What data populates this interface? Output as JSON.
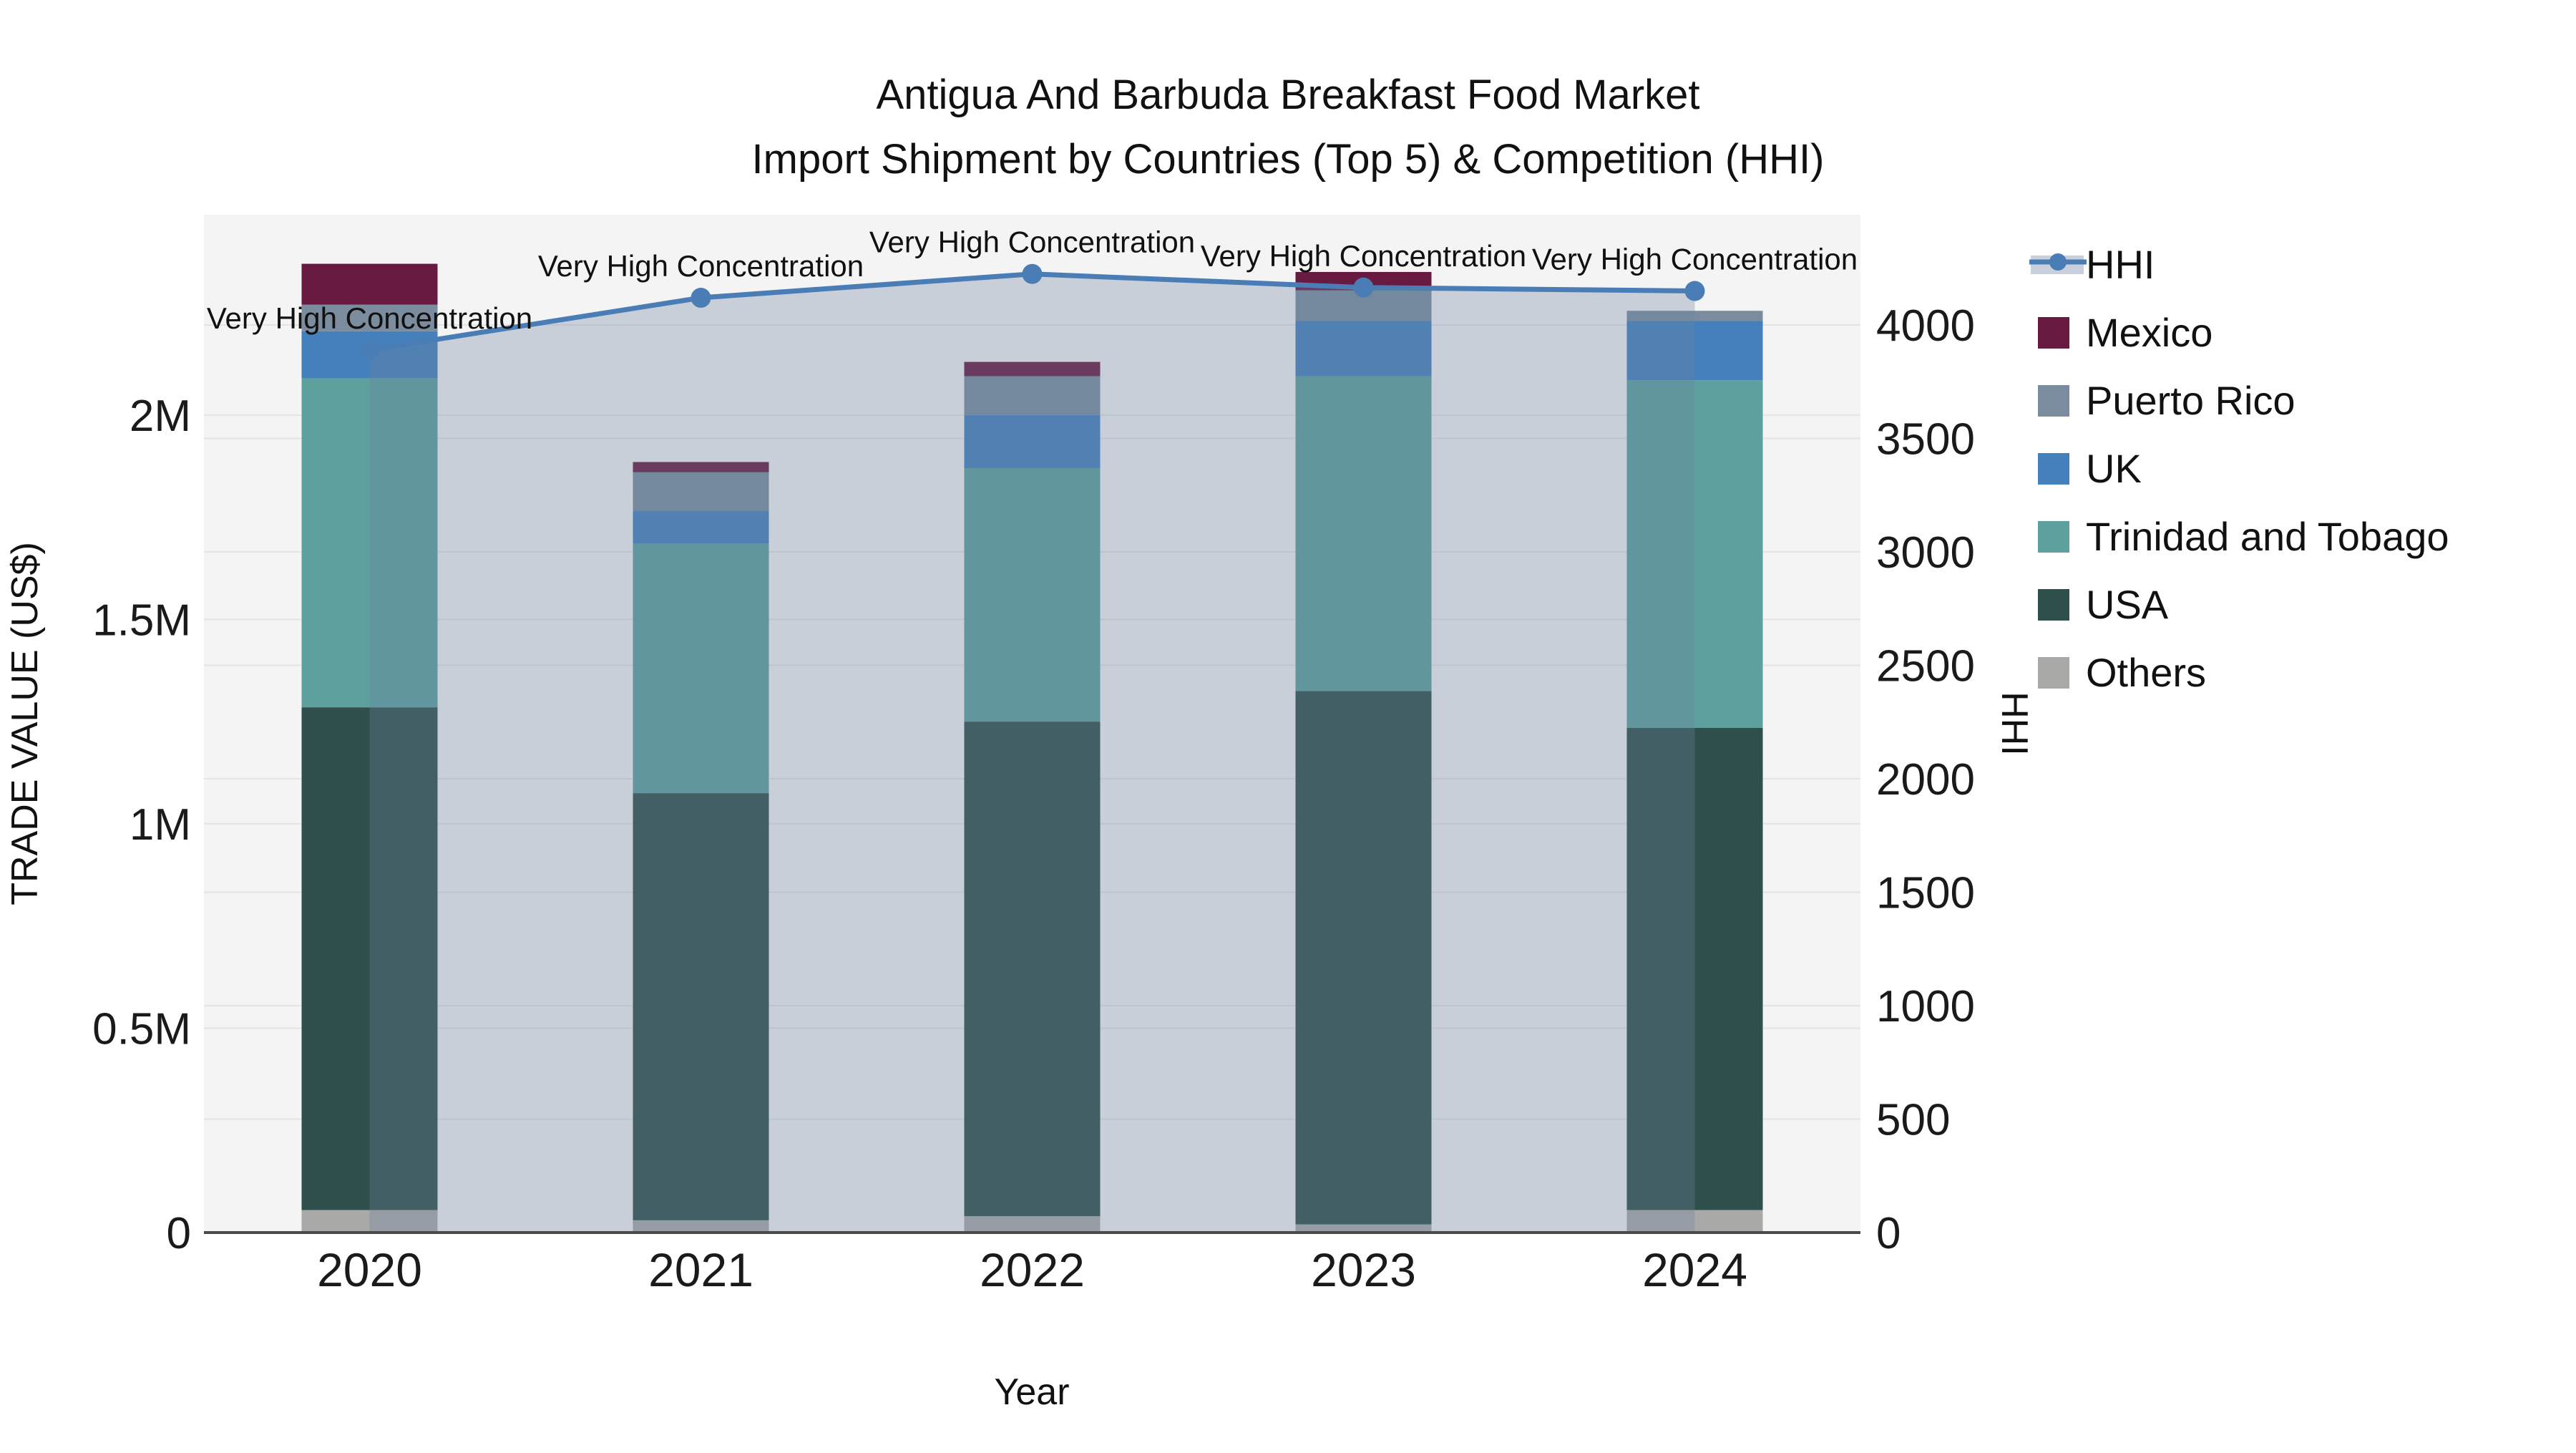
{
  "title": {
    "line1": "Antigua And Barbuda Breakfast Food Market",
    "line2": "Import Shipment by Countries (Top 5) & Competition (HHI)"
  },
  "colors": {
    "background": "#ffffff",
    "plot_bg": "#f4f4f4",
    "grid": "#e4e4e4",
    "axis_line": "#4a4a4a",
    "text": "#111111",
    "legend_hhi_band": "#c9d0dc"
  },
  "chart_data": {
    "type": "stacked-bar+line",
    "x": [
      "2020",
      "2021",
      "2022",
      "2023",
      "2024"
    ],
    "xlabel": "Year",
    "ylabel_left": "TRADE VALUE (US$)",
    "ylabel_right": "HHI",
    "grid": true,
    "legend_position": "right",
    "y_left_max": 2490000,
    "y_left_ticks": [
      {
        "label": "0",
        "value": 0
      },
      {
        "label": "0.5M",
        "value": 500000
      },
      {
        "label": "1M",
        "value": 1000000
      },
      {
        "label": "1.5M",
        "value": 1500000
      },
      {
        "label": "2M",
        "value": 2000000
      }
    ],
    "y_right_max": 4486,
    "y_right_ticks": [
      {
        "label": "0",
        "value": 0
      },
      {
        "label": "500",
        "value": 500
      },
      {
        "label": "1000",
        "value": 1000
      },
      {
        "label": "1500",
        "value": 1500
      },
      {
        "label": "2000",
        "value": 2000
      },
      {
        "label": "2500",
        "value": 2500
      },
      {
        "label": "3000",
        "value": 3000
      },
      {
        "label": "3500",
        "value": 3500
      },
      {
        "label": "4000",
        "value": 4000
      }
    ],
    "series": [
      {
        "name": "Others",
        "color": "#a9a9a7",
        "values": [
          55000,
          30000,
          40000,
          20000,
          55000
        ]
      },
      {
        "name": "USA",
        "color": "#2e4f4c",
        "values": [
          1230000,
          1045000,
          1210000,
          1305000,
          1180000
        ]
      },
      {
        "name": "Trinidad and Tobago",
        "color": "#5ea09e",
        "values": [
          805000,
          610000,
          620000,
          770000,
          850000
        ]
      },
      {
        "name": "UK",
        "color": "#4380bc",
        "values": [
          115000,
          80000,
          130000,
          135000,
          145000
        ]
      },
      {
        "name": "Puerto Rico",
        "color": "#7a8c9e",
        "values": [
          65000,
          95000,
          95000,
          75000,
          25000
        ]
      },
      {
        "name": "Mexico",
        "color": "#681a40",
        "values": [
          100000,
          25000,
          35000,
          45000,
          0
        ]
      }
    ],
    "line": {
      "name": "HHI",
      "color": "#4a7db5",
      "fill_color": "#6e82a0",
      "fill_alpha": 0.32,
      "values": [
        3890,
        4120,
        4225,
        4165,
        4150
      ]
    },
    "annotations": [
      "Very High Concentration",
      "Very High Concentration",
      "Very High Concentration",
      "Very High Concentration",
      "Very High Concentration"
    ],
    "legend_order": [
      "HHI",
      "Mexico",
      "Puerto Rico",
      "UK",
      "Trinidad and Tobago",
      "USA",
      "Others"
    ]
  }
}
